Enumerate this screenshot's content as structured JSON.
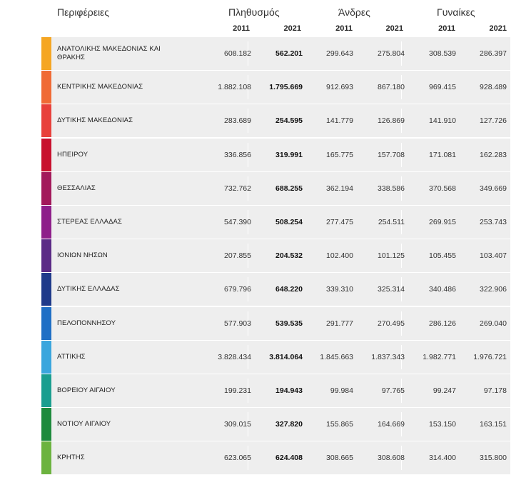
{
  "header": {
    "regions_label": "Περιφέρειες",
    "population_label": "Πληθυσμός",
    "men_label": "Άνδρες",
    "women_label": "Γυναίκες",
    "years": [
      "2011",
      "2021",
      "2011",
      "2021",
      "2011",
      "2021"
    ]
  },
  "rows": [
    {
      "name": "ΑΝΑΤΟΛΙΚΗΣ ΜΑΚΕΔΟΝΙΑΣ ΚΑΙ ΘΡΑΚΗΣ",
      "color": "#f5a623",
      "pop2011": "608.182",
      "pop2021": "562.201",
      "men2011": "299.643",
      "men2021": "275.804",
      "women2011": "308.539",
      "women2021": "286.397"
    },
    {
      "name": "ΚΕΝΤΡΙΚΗΣ ΜΑΚΕΔΟΝΙΑΣ",
      "color": "#f06a35",
      "pop2011": "1.882.108",
      "pop2021": "1.795.669",
      "men2011": "912.693",
      "men2021": "867.180",
      "women2011": "969.415",
      "women2021": "928.489"
    },
    {
      "name": "ΔΥΤΙΚΗΣ ΜΑΚΕΔΟΝΙΑΣ",
      "color": "#e8403b",
      "pop2011": "283.689",
      "pop2021": "254.595",
      "men2011": "141.779",
      "men2021": "126.869",
      "women2011": "141.910",
      "women2021": "127.726"
    },
    {
      "name": "ΗΠΕΙΡΟΥ",
      "color": "#c8102e",
      "pop2011": "336.856",
      "pop2021": "319.991",
      "men2011": "165.775",
      "men2021": "157.708",
      "women2011": "171.081",
      "women2021": "162.283"
    },
    {
      "name": "ΘΕΣΣΑΛΙΑΣ",
      "color": "#a3195b",
      "pop2011": "732.762",
      "pop2021": "688.255",
      "men2011": "362.194",
      "men2021": "338.586",
      "women2011": "370.568",
      "women2021": "349.669"
    },
    {
      "name": "ΣΤΕΡΕΑΣ ΕΛΛΑΔΑΣ",
      "color": "#8e1f8a",
      "pop2011": "547.390",
      "pop2021": "508.254",
      "men2011": "277.475",
      "men2021": "254.511",
      "women2011": "269.915",
      "women2021": "253.743"
    },
    {
      "name": "ΙΟΝΙΩΝ ΝΗΣΩΝ",
      "color": "#5b2a86",
      "pop2011": "207.855",
      "pop2021": "204.532",
      "men2011": "102.400",
      "men2021": "101.125",
      "women2011": "105.455",
      "women2021": "103.407"
    },
    {
      "name": "ΔΥΤΙΚΗΣ ΕΛΛΑΔΑΣ",
      "color": "#1f3a8a",
      "pop2011": "679.796",
      "pop2021": "648.220",
      "men2011": "339.310",
      "men2021": "325.314",
      "women2011": "340.486",
      "women2021": "322.906"
    },
    {
      "name": "ΠΕΛΟΠΟΝΝΗΣΟΥ",
      "color": "#1f6fc5",
      "pop2011": "577.903",
      "pop2021": "539.535",
      "men2011": "291.777",
      "men2021": "270.495",
      "women2011": "286.126",
      "women2021": "269.040"
    },
    {
      "name": "ΑΤΤΙΚΗΣ",
      "color": "#3aa6dd",
      "pop2011": "3.828.434",
      "pop2021": "3.814.064",
      "men2011": "1.845.663",
      "men2021": "1.837.343",
      "women2011": "1.982.771",
      "women2021": "1.976.721"
    },
    {
      "name": "ΒΟΡΕΙΟΥ ΑΙΓΑΙΟΥ",
      "color": "#1a9e8f",
      "pop2011": "199.231",
      "pop2021": "194.943",
      "men2011": "99.984",
      "men2021": "97.765",
      "women2011": "99.247",
      "women2021": "97.178"
    },
    {
      "name": "ΝΟΤΙΟΥ ΑΙΓΑΙΟΥ",
      "color": "#1e8a3c",
      "pop2011": "309.015",
      "pop2021": "327.820",
      "men2011": "155.865",
      "men2021": "164.669",
      "women2011": "153.150",
      "women2021": "163.151"
    },
    {
      "name": "ΚΡΗΤΗΣ",
      "color": "#6cb33f",
      "pop2011": "623.065",
      "pop2021": "624.408",
      "men2011": "308.665",
      "men2021": "308.608",
      "women2011": "314.400",
      "women2021": "315.800"
    }
  ]
}
